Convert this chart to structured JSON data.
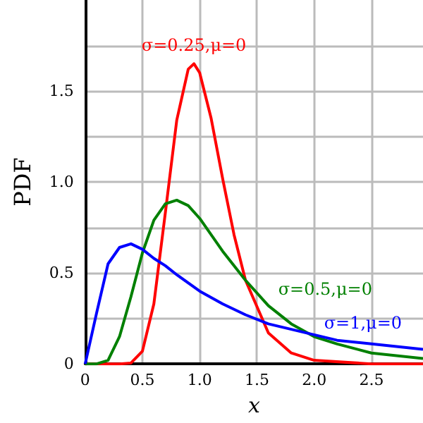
{
  "chart_data": {
    "type": "line",
    "xlabel": "x",
    "ylabel": "PDF",
    "xlim": [
      0,
      2.95
    ],
    "ylim": [
      0,
      2
    ],
    "xticks": [
      0,
      {
        "value": 0.5,
        "label": "0.5"
      },
      {
        "value": 1,
        "label": "1.0"
      },
      {
        "value": 1.5,
        "label": "1.5"
      },
      {
        "value": 2,
        "label": "2.0"
      },
      {
        "value": 2.5,
        "label": "2.5"
      }
    ],
    "yticks": [
      0,
      {
        "value": 0.25,
        "label": null
      },
      {
        "value": 0.5,
        "label": "0.5"
      },
      {
        "value": 0.75,
        "label": null
      },
      {
        "value": 1,
        "label": "1.0"
      },
      {
        "value": 1.25,
        "label": null
      },
      {
        "value": 1.5,
        "label": "1.5"
      },
      {
        "value": 1.75,
        "label": null
      }
    ],
    "grid": true,
    "marker": "none",
    "line_style": "solid",
    "series": [
      {
        "name": "σ=0.25,μ=0",
        "color": "#ff0000",
        "x": [
          0,
          0.3,
          0.4,
          0.5,
          0.6,
          0.7,
          0.8,
          0.9,
          0.95,
          1.0,
          1.1,
          1.2,
          1.3,
          1.4,
          1.6,
          1.8,
          2.0,
          2.5,
          2.95
        ],
        "values": [
          0,
          0,
          0.005,
          0.07,
          0.33,
          0.83,
          1.34,
          1.62,
          1.65,
          1.6,
          1.35,
          1.02,
          0.71,
          0.46,
          0.17,
          0.06,
          0.02,
          0,
          0
        ]
      },
      {
        "name": "σ=0.5,μ=0",
        "color": "#008000",
        "x": [
          0,
          0.1,
          0.2,
          0.3,
          0.4,
          0.5,
          0.6,
          0.7,
          0.8,
          0.9,
          1.0,
          1.2,
          1.4,
          1.6,
          1.8,
          2.0,
          2.2,
          2.5,
          2.95
        ],
        "values": [
          0,
          0,
          0.02,
          0.15,
          0.37,
          0.61,
          0.79,
          0.88,
          0.9,
          0.87,
          0.8,
          0.62,
          0.46,
          0.32,
          0.22,
          0.15,
          0.11,
          0.06,
          0.03
        ]
      },
      {
        "name": "σ=1,μ=0",
        "color": "#0000ff",
        "x": [
          0,
          0.1,
          0.2,
          0.3,
          0.4,
          0.5,
          0.6,
          0.7,
          0.8,
          1.0,
          1.2,
          1.4,
          1.6,
          1.8,
          2.0,
          2.2,
          2.5,
          2.95
        ],
        "values": [
          0,
          0.28,
          0.55,
          0.64,
          0.66,
          0.63,
          0.58,
          0.54,
          0.49,
          0.4,
          0.33,
          0.27,
          0.22,
          0.19,
          0.16,
          0.13,
          0.11,
          0.08
        ]
      }
    ]
  }
}
